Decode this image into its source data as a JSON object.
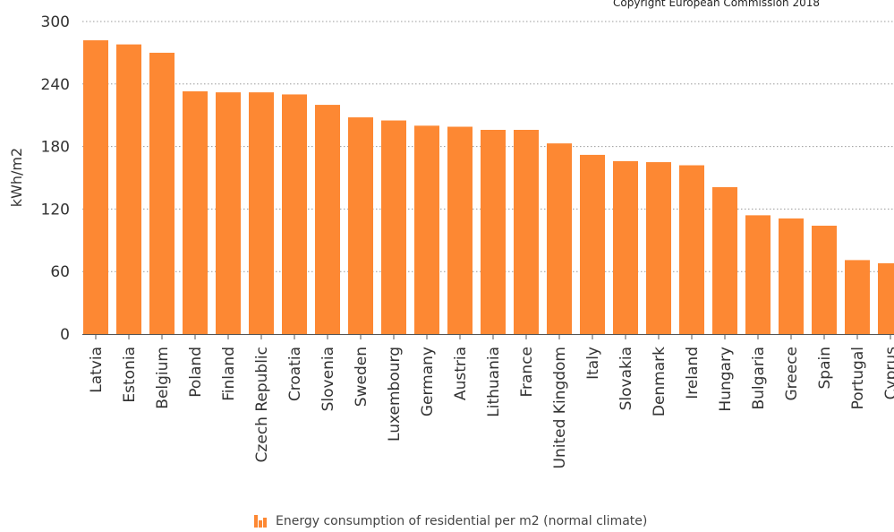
{
  "copyright": "Copyright European Commission 2018",
  "legend": {
    "label": "Energy consumption of residential per m2 (normal climate)",
    "icon": "bar-chart-icon"
  },
  "colors": {
    "bar": "#fd8833",
    "grid": "#9a9a9a",
    "axis": "#333333"
  },
  "chart_data": {
    "type": "bar",
    "title": "",
    "xlabel": "",
    "ylabel": "kWh/m2",
    "ylim": [
      0,
      300
    ],
    "yticks": [
      0,
      60,
      120,
      180,
      240,
      300
    ],
    "grid": true,
    "legend_position": "bottom",
    "categories": [
      "Latvia",
      "Estonia",
      "Belgium",
      "Poland",
      "Finland",
      "Czech Republic",
      "Croatia",
      "Slovenia",
      "Sweden",
      "Luxembourg",
      "Germany",
      "Austria",
      "Lithuania",
      "France",
      "United Kingdom",
      "Italy",
      "Slovakia",
      "Denmark",
      "Ireland",
      "Hungary",
      "Bulgaria",
      "Greece",
      "Spain",
      "Portugal",
      "Cyprus"
    ],
    "series": [
      {
        "name": "Energy consumption of residential per m2 (normal climate)",
        "values": [
          282,
          278,
          270,
          233,
          232,
          232,
          230,
          220,
          208,
          205,
          200,
          199,
          196,
          196,
          183,
          172,
          166,
          165,
          162,
          141,
          114,
          111,
          104,
          71,
          68
        ]
      }
    ]
  }
}
